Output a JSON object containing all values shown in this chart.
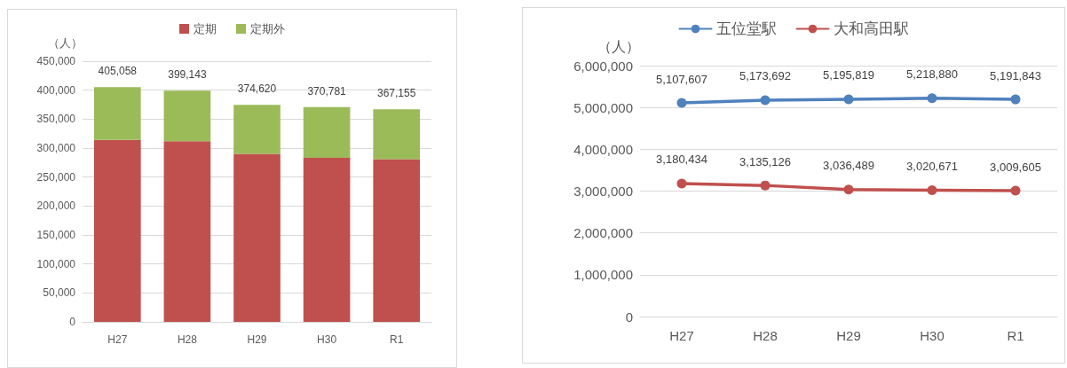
{
  "chart_data": [
    {
      "type": "bar",
      "stacked": true,
      "ylabel": "（人）",
      "categories": [
        "H27",
        "H28",
        "H29",
        "H30",
        "R1"
      ],
      "series": [
        {
          "name": "定期",
          "color": "#c0504d",
          "values": [
            314000,
            312000,
            290000,
            283000,
            281000
          ]
        },
        {
          "name": "定期外",
          "color": "#9bbb59",
          "values": [
            91058,
            87143,
            84620,
            87781,
            86155
          ]
        }
      ],
      "totals": [
        "405,058",
        "399,143",
        "374,620",
        "370,781",
        "367,155"
      ],
      "ylim": [
        0,
        450000
      ],
      "yticks": [
        0,
        {
          "value": 50000,
          "label": "50,000"
        },
        {
          "value": 100000,
          "label": "100,000"
        },
        {
          "value": 150000,
          "label": "150,000"
        },
        {
          "value": 200000,
          "label": "200,000"
        },
        {
          "value": 250000,
          "label": "250,000"
        },
        {
          "value": 300000,
          "label": "300,000"
        },
        {
          "value": 350000,
          "label": "350,000"
        },
        {
          "value": 400000,
          "label": "400,000"
        },
        {
          "value": 450000,
          "label": "450,000"
        }
      ],
      "grid": "y",
      "legend": "top"
    },
    {
      "type": "line",
      "ylabel": "（人）",
      "categories": [
        "H27",
        "H28",
        "H29",
        "H30",
        "R1"
      ],
      "series": [
        {
          "name": "五位堂駅",
          "color": "#4f81bd",
          "values": [
            5107607,
            5173692,
            5195819,
            5218880,
            5191843
          ],
          "value_labels": [
            "5,107,607",
            "5,173,692",
            "5,195,819",
            "5,218,880",
            "5,191,843"
          ]
        },
        {
          "name": "大和高田駅",
          "color": "#c0504d",
          "values": [
            3180434,
            3135126,
            3036489,
            3020671,
            3009605
          ],
          "value_labels": [
            "3,180,434",
            "3,135,126",
            "3,036,489",
            "3,020,671",
            "3,009,605"
          ]
        }
      ],
      "marker": "circle",
      "line_style": "solid",
      "ylim": [
        0,
        6000000
      ],
      "yticks": [
        0,
        {
          "value": 1000000,
          "label": "1,000,000"
        },
        {
          "value": 2000000,
          "label": "2,000,000"
        },
        {
          "value": 3000000,
          "label": "3,000,000"
        },
        {
          "value": 4000000,
          "label": "4,000,000"
        },
        {
          "value": 5000000,
          "label": "5,000,000"
        },
        {
          "value": 6000000,
          "label": "6,000,000"
        }
      ],
      "grid": "y",
      "legend": "top"
    }
  ]
}
